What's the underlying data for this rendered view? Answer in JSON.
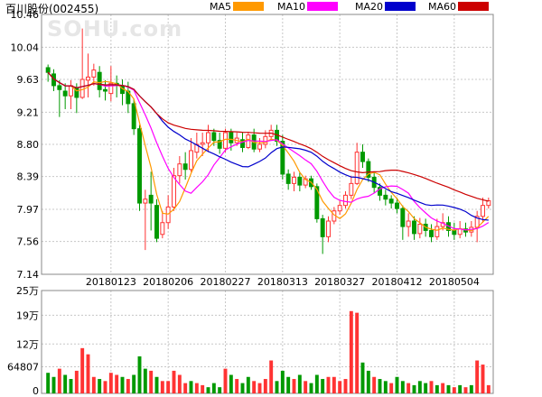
{
  "chart_data": [
    {
      "type": "candlestick",
      "title": "百川股份(002455)",
      "watermark": "SOHU.com",
      "legend": [
        {
          "label": "MA5",
          "color": "#ff9900"
        },
        {
          "label": "MA10",
          "color": "#ff00ff"
        },
        {
          "label": "MA20",
          "color": "#0000cc"
        },
        {
          "label": "MA60",
          "color": "#cc0000"
        }
      ],
      "y_ticks": [
        "10.46",
        "10.04",
        "9.63",
        "9.21",
        "8.80",
        "8.39",
        "7.97",
        "7.56",
        "7.14"
      ],
      "ylim": [
        7.14,
        10.46
      ],
      "x_ticks": [
        {
          "label": "20180123",
          "index": 11
        },
        {
          "label": "20180206",
          "index": 21
        },
        {
          "label": "20180227",
          "index": 31
        },
        {
          "label": "20180313",
          "index": 41
        },
        {
          "label": "20180327",
          "index": 51
        },
        {
          "label": "20180412",
          "index": 61
        },
        {
          "label": "20180504",
          "index": 71
        }
      ],
      "up_color": "#ff3333",
      "down_color": "#009900",
      "candles": [
        [
          9.78,
          9.72,
          9.82,
          9.6
        ],
        [
          9.7,
          9.55,
          9.76,
          9.48
        ],
        [
          9.55,
          9.5,
          9.62,
          9.15
        ],
        [
          9.48,
          9.42,
          9.58,
          9.25
        ],
        [
          9.42,
          9.55,
          9.62,
          9.25
        ],
        [
          9.52,
          9.4,
          9.58,
          9.2
        ],
        [
          9.4,
          9.63,
          10.28,
          9.38
        ],
        [
          9.62,
          9.66,
          9.96,
          9.4
        ],
        [
          9.66,
          9.75,
          9.83,
          9.55
        ],
        [
          9.72,
          9.5,
          9.8,
          9.4
        ],
        [
          9.5,
          9.48,
          9.62,
          9.36
        ],
        [
          9.45,
          9.58,
          9.8,
          9.35
        ],
        [
          9.58,
          9.55,
          9.68,
          9.4
        ],
        [
          9.55,
          9.45,
          9.63,
          9.3
        ],
        [
          9.48,
          9.32,
          9.6,
          9.2
        ],
        [
          9.32,
          9.0,
          9.38,
          8.92
        ],
        [
          9.0,
          8.05,
          9.05,
          7.95
        ],
        [
          8.05,
          8.1,
          8.22,
          7.45
        ],
        [
          8.15,
          8.05,
          8.45,
          7.7
        ],
        [
          8.02,
          7.6,
          8.1,
          7.55
        ],
        [
          7.65,
          7.8,
          7.95,
          7.6
        ],
        [
          7.8,
          8.0,
          8.15,
          7.72
        ],
        [
          8.0,
          8.4,
          8.5,
          7.95
        ],
        [
          8.4,
          8.55,
          8.65,
          8.3
        ],
        [
          8.55,
          8.48,
          8.7,
          8.35
        ],
        [
          8.48,
          8.72,
          8.88,
          8.45
        ],
        [
          8.7,
          8.8,
          8.95,
          8.62
        ],
        [
          8.8,
          8.82,
          8.95,
          8.65
        ],
        [
          8.82,
          8.95,
          9.05,
          8.7
        ],
        [
          8.95,
          8.85,
          9.0,
          8.78
        ],
        [
          8.85,
          8.75,
          8.95,
          8.68
        ],
        [
          8.75,
          8.95,
          9.0,
          8.7
        ],
        [
          8.95,
          8.82,
          9.0,
          8.72
        ],
        [
          8.82,
          8.88,
          8.95,
          8.78
        ],
        [
          8.86,
          8.76,
          8.95,
          8.7
        ],
        [
          8.76,
          8.92,
          8.96,
          8.74
        ],
        [
          8.92,
          8.74,
          9.0,
          8.7
        ],
        [
          8.74,
          8.8,
          8.88,
          8.7
        ],
        [
          8.8,
          8.9,
          8.98,
          8.75
        ],
        [
          8.9,
          8.98,
          9.05,
          8.85
        ],
        [
          8.98,
          8.84,
          9.05,
          8.78
        ],
        [
          8.84,
          8.42,
          8.92,
          8.35
        ],
        [
          8.42,
          8.3,
          8.48,
          8.22
        ],
        [
          8.3,
          8.38,
          8.45,
          8.2
        ],
        [
          8.38,
          8.28,
          8.44,
          8.2
        ],
        [
          8.28,
          8.36,
          8.4,
          8.24
        ],
        [
          8.36,
          8.26,
          8.4,
          8.22
        ],
        [
          8.26,
          7.85,
          8.3,
          7.8
        ],
        [
          7.85,
          7.62,
          7.9,
          7.4
        ],
        [
          7.62,
          7.82,
          7.88,
          7.55
        ],
        [
          7.82,
          7.95,
          8.0,
          7.78
        ],
        [
          7.95,
          8.02,
          8.08,
          7.9
        ],
        [
          8.02,
          8.15,
          8.2,
          7.98
        ],
        [
          8.15,
          8.3,
          8.4,
          8.1
        ],
        [
          8.3,
          8.7,
          8.82,
          8.28
        ],
        [
          8.7,
          8.58,
          8.8,
          8.5
        ],
        [
          8.58,
          8.38,
          8.62,
          8.32
        ],
        [
          8.38,
          8.25,
          8.45,
          8.18
        ],
        [
          8.25,
          8.15,
          8.3,
          8.08
        ],
        [
          8.15,
          8.1,
          8.22,
          8.02
        ],
        [
          8.1,
          8.05,
          8.15,
          7.98
        ],
        [
          8.05,
          7.98,
          8.12,
          7.92
        ],
        [
          7.98,
          7.75,
          8.02,
          7.58
        ],
        [
          7.75,
          7.82,
          7.92,
          7.62
        ],
        [
          7.82,
          7.66,
          7.88,
          7.58
        ],
        [
          7.66,
          7.78,
          7.86,
          7.6
        ],
        [
          7.78,
          7.7,
          7.85,
          7.62
        ],
        [
          7.7,
          7.62,
          7.78,
          7.55
        ],
        [
          7.62,
          7.75,
          7.85,
          7.58
        ],
        [
          7.75,
          7.8,
          7.92,
          7.7
        ],
        [
          7.8,
          7.7,
          7.88,
          7.62
        ],
        [
          7.7,
          7.65,
          7.8,
          7.58
        ],
        [
          7.65,
          7.72,
          7.82,
          7.6
        ],
        [
          7.72,
          7.68,
          7.8,
          7.62
        ],
        [
          7.68,
          7.74,
          7.82,
          7.62
        ],
        [
          7.74,
          7.88,
          7.95,
          7.55
        ],
        [
          7.88,
          8.02,
          8.12,
          7.8
        ],
        [
          8.02,
          8.08,
          8.12,
          7.98
        ]
      ]
    },
    {
      "type": "bar",
      "y_ticks": [
        "25万",
        "19万",
        "12万",
        "64807",
        "0"
      ],
      "ylim": [
        0,
        250000
      ],
      "values": [
        [
          50000,
          "down"
        ],
        [
          40000,
          "down"
        ],
        [
          60000,
          "up"
        ],
        [
          45000,
          "down"
        ],
        [
          35000,
          "down"
        ],
        [
          55000,
          "up"
        ],
        [
          110000,
          "up"
        ],
        [
          95000,
          "up"
        ],
        [
          40000,
          "up"
        ],
        [
          35000,
          "down"
        ],
        [
          30000,
          "up"
        ],
        [
          50000,
          "up"
        ],
        [
          45000,
          "up"
        ],
        [
          40000,
          "down"
        ],
        [
          35000,
          "up"
        ],
        [
          45000,
          "down"
        ],
        [
          90000,
          "down"
        ],
        [
          60000,
          "down"
        ],
        [
          55000,
          "up"
        ],
        [
          40000,
          "down"
        ],
        [
          30000,
          "up"
        ],
        [
          30000,
          "up"
        ],
        [
          55000,
          "up"
        ],
        [
          45000,
          "up"
        ],
        [
          25000,
          "up"
        ],
        [
          30000,
          "down"
        ],
        [
          25000,
          "up"
        ],
        [
          20000,
          "up"
        ],
        [
          15000,
          "down"
        ],
        [
          25000,
          "down"
        ],
        [
          15000,
          "down"
        ],
        [
          60000,
          "up"
        ],
        [
          45000,
          "down"
        ],
        [
          35000,
          "up"
        ],
        [
          25000,
          "down"
        ],
        [
          40000,
          "down"
        ],
        [
          30000,
          "up"
        ],
        [
          25000,
          "up"
        ],
        [
          35000,
          "up"
        ],
        [
          80000,
          "up"
        ],
        [
          30000,
          "down"
        ],
        [
          55000,
          "down"
        ],
        [
          40000,
          "down"
        ],
        [
          35000,
          "up"
        ],
        [
          45000,
          "down"
        ],
        [
          30000,
          "up"
        ],
        [
          25000,
          "down"
        ],
        [
          45000,
          "down"
        ],
        [
          35000,
          "down"
        ],
        [
          40000,
          "up"
        ],
        [
          40000,
          "up"
        ],
        [
          30000,
          "up"
        ],
        [
          35000,
          "up"
        ],
        [
          200000,
          "up"
        ],
        [
          196000,
          "up"
        ],
        [
          75000,
          "down"
        ],
        [
          55000,
          "down"
        ],
        [
          40000,
          "up"
        ],
        [
          35000,
          "down"
        ],
        [
          30000,
          "down"
        ],
        [
          25000,
          "up"
        ],
        [
          40000,
          "down"
        ],
        [
          30000,
          "down"
        ],
        [
          25000,
          "up"
        ],
        [
          20000,
          "down"
        ],
        [
          30000,
          "down"
        ],
        [
          25000,
          "down"
        ],
        [
          30000,
          "up"
        ],
        [
          20000,
          "down"
        ],
        [
          25000,
          "up"
        ],
        [
          20000,
          "down"
        ],
        [
          15000,
          "up"
        ],
        [
          20000,
          "down"
        ],
        [
          15000,
          "up"
        ],
        [
          20000,
          "down"
        ],
        [
          80000,
          "up"
        ],
        [
          70000,
          "up"
        ],
        [
          20000,
          "up"
        ]
      ]
    }
  ]
}
